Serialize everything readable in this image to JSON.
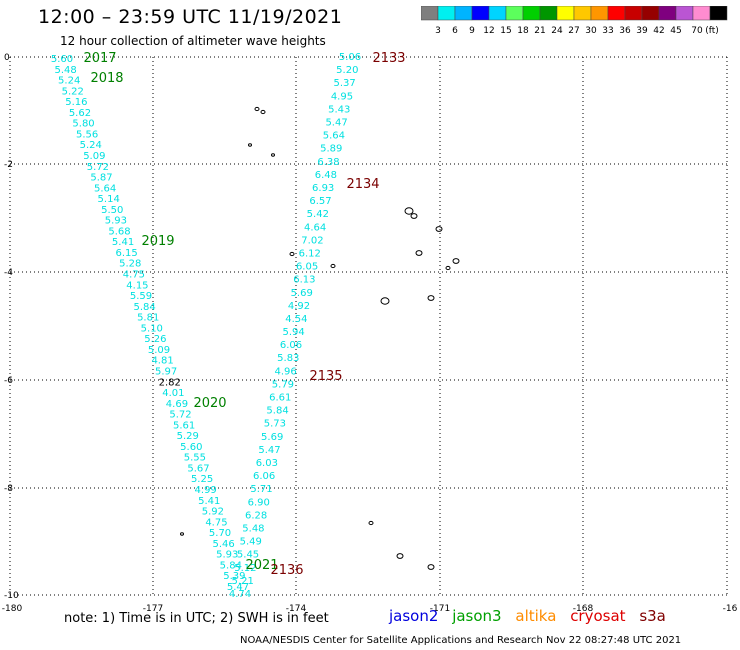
{
  "header": {
    "title": "12:00 – 23:59 UTC 11/19/2021",
    "subtitle": "12 hour collection of altimeter wave heights"
  },
  "colorbar": {
    "colors": [
      "#7f7f7f",
      "#00f0f0",
      "#00b4ff",
      "#0000ff",
      "#00d4ff",
      "#5cff5c",
      "#00d000",
      "#009600",
      "#ffff00",
      "#ffc800",
      "#ff9600",
      "#ff0000",
      "#c80000",
      "#960000",
      "#7f007f",
      "#ba55d3",
      "#ff8cd0",
      "#000000"
    ],
    "labels": [
      "3",
      "6",
      "9",
      "12",
      "15",
      "18",
      "21",
      "24",
      "27",
      "30",
      "33",
      "36",
      "39",
      "42",
      "45",
      "70"
    ],
    "unit": "(ft)"
  },
  "axes": {
    "x_ticks": [
      "-180",
      "-177",
      "-174",
      "-171",
      "-168",
      "-16"
    ],
    "y_ticks": [
      "0",
      "-2",
      "-4",
      "-6",
      "-8",
      "-10"
    ]
  },
  "tracks": [
    {
      "id": "west",
      "color": "#00e0e0",
      "values": [
        "5.60",
        "5.48",
        "5.24",
        "5.22",
        "5.16",
        "5.62",
        "5.80",
        "5.56",
        "5.24",
        "5.09",
        "5.72",
        "5.87",
        "5.64",
        "5.14",
        "5.50",
        "5.93",
        "5.68",
        "5.41",
        "6.15",
        "5.28",
        "4.75",
        "4.15",
        "5.59",
        "5.84",
        "5.81",
        "5.10",
        "5.26",
        "5.09",
        "4.81",
        "5.97",
        "2.82",
        "4.01",
        "4.69",
        "5.72",
        "5.61",
        "5.29",
        "5.60",
        "5.55",
        "5.67",
        "5.25",
        "4.99",
        "5.41",
        "5.92",
        "4.75",
        "5.70",
        "5.46",
        "5.93",
        "5.84",
        "5.39",
        "5.47"
      ],
      "odd_value": "2.82"
    },
    {
      "id": "east",
      "color": "#00e0e0",
      "values": [
        "5.06",
        "5.20",
        "5.37",
        "4.95",
        "5.43",
        "5.47",
        "5.64",
        "5.89",
        "6.38",
        "6.48",
        "6.93",
        "6.57",
        "5.42",
        "4.64",
        "7.02",
        "6.12",
        "6.05",
        "6.13",
        "5.69",
        "4.92",
        "4.54",
        "5.94",
        "6.06",
        "5.83",
        "4.96",
        "5.79",
        "6.61",
        "5.84",
        "5.73",
        "5.69",
        "5.47",
        "6.03",
        "6.06",
        "5.71",
        "6.90",
        "6.28",
        "5.48",
        "5.49",
        "5.45",
        "5.12",
        "5.21",
        "4.74"
      ]
    }
  ],
  "pass_labels": {
    "green": [
      "2017",
      "2018",
      "2019",
      "2020",
      "2021"
    ],
    "darkred": [
      "2133",
      "2134",
      "2135",
      "2136"
    ]
  },
  "footer": {
    "note": "note:  1) Time is in UTC;  2) SWH is in feet",
    "legend": [
      {
        "label": "jason2",
        "color": "#0000dd"
      },
      {
        "label": "jason3",
        "color": "#00a000"
      },
      {
        "label": "altika",
        "color": "#ff8c00"
      },
      {
        "label": "cryosat",
        "color": "#dd0000"
      },
      {
        "label": "s3a",
        "color": "#800000"
      }
    ],
    "credit": "NOAA/NESDIS Center for Satellite Applications and Research    Nov 22 08:27:48 UTC 2021"
  }
}
